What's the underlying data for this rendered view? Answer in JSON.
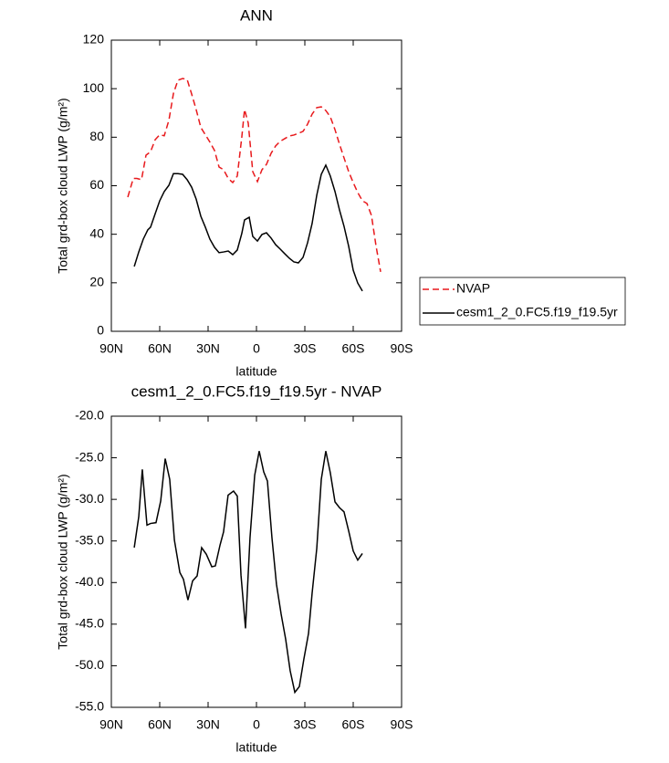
{
  "chart_data": [
    {
      "type": "line",
      "title": "ANN",
      "xlabel": "latitude",
      "ylabel": "Total grd-box cloud LWP (g/m²)",
      "xlim": [
        90,
        -90
      ],
      "ylim": [
        0,
        120
      ],
      "xticks": [
        {
          "value": 90,
          "label": "90N"
        },
        {
          "value": 60,
          "label": "60N"
        },
        {
          "value": 30,
          "label": "30N"
        },
        0,
        {
          "value": -30,
          "label": "30S"
        },
        {
          "value": -60,
          "label": "60S"
        },
        {
          "value": -90,
          "label": "90S"
        }
      ],
      "yticks": [
        0,
        20,
        40,
        60,
        80,
        100,
        120
      ],
      "legend": "right",
      "series": [
        {
          "name": "NVAP",
          "color": "#e8191c",
          "style": "dashed",
          "x": [
            79.8,
            76.4,
            74.2,
            71.3,
            68.5,
            65.7,
            62.8,
            60.0,
            57.2,
            54.3,
            51.5,
            48.7,
            45.8,
            43.0,
            40.2,
            37.4,
            34.5,
            31.7,
            28.9,
            26.0,
            23.2,
            20.4,
            17.5,
            14.7,
            11.9,
            9.1,
            7.4,
            5.1,
            2.3,
            -0.6,
            -3.4,
            -6.2,
            -9.1,
            -11.9,
            -14.7,
            -17.5,
            -20.4,
            -23.2,
            -26.0,
            -28.9,
            -31.7,
            -34.5,
            -37.4,
            -40.2,
            -43.0,
            -45.8,
            -48.7,
            -51.5,
            -54.3,
            -57.2,
            -60.0,
            -62.8,
            -65.7,
            -68.5,
            -71.3,
            -74.2,
            -77.0
          ],
          "values": [
            55.3,
            63,
            63,
            62.5,
            72.6,
            74,
            79,
            81,
            80.6,
            87,
            98,
            103.5,
            104.2,
            103.8,
            97.8,
            91.4,
            84,
            81,
            78,
            74.5,
            67.7,
            66.6,
            63,
            61.3,
            64,
            80,
            91.4,
            85.8,
            65.8,
            61.7,
            66.6,
            68.8,
            73.4,
            76.4,
            78.3,
            79.4,
            80.5,
            80.9,
            81.6,
            82.4,
            85.4,
            89.5,
            92.2,
            92.5,
            91,
            88.4,
            83.1,
            77.1,
            71.5,
            65.8,
            61.3,
            57.2,
            53.8,
            52.7,
            47.8,
            35,
            24.5
          ]
        },
        {
          "name": "cesm1_2_0.FC5.f19_f19.5yr",
          "color": "#000000",
          "style": "solid",
          "x": [
            75.8,
            73.0,
            70.2,
            67.4,
            65.7,
            62.8,
            60.0,
            57.2,
            54.3,
            51.5,
            48.7,
            45.8,
            43.0,
            40.2,
            37.4,
            34.5,
            31.7,
            28.9,
            26.0,
            23.2,
            20.4,
            17.5,
            14.7,
            11.9,
            9.1,
            7.4,
            4.5,
            2.3,
            -0.6,
            -3.4,
            -6.2,
            -9.1,
            -11.9,
            -14.7,
            -17.5,
            -20.4,
            -23.2,
            -26.0,
            -28.9,
            -31.7,
            -34.5,
            -37.4,
            -40.2,
            -43.0,
            -45.8,
            -48.7,
            -51.5,
            -54.3,
            -57.2,
            -60.0,
            -62.8,
            -65.7
          ],
          "values": [
            26.7,
            32.7,
            38,
            41.8,
            42.9,
            48.5,
            53.8,
            57.6,
            60.2,
            65,
            65,
            64.7,
            62.5,
            59.4,
            54.5,
            47.4,
            42.9,
            38,
            34.6,
            32.4,
            32.7,
            33.1,
            31.6,
            33.5,
            40.3,
            45.9,
            47,
            39.1,
            37.2,
            39.9,
            40.6,
            38.4,
            35.7,
            33.9,
            32,
            30.1,
            28.6,
            28.2,
            30.5,
            36.5,
            44.4,
            56.1,
            64.7,
            68.5,
            64,
            57.6,
            50,
            43.3,
            35,
            25.2,
            19.9,
            16.6
          ]
        }
      ]
    },
    {
      "type": "line",
      "title": "cesm1_2_0.FC5.f19_f19.5yr - NVAP",
      "xlabel": "latitude",
      "ylabel": "Total grd-box cloud LWP (g/m²)",
      "xlim": [
        90,
        -90
      ],
      "ylim": [
        -55,
        -20
      ],
      "xticks": [
        {
          "value": 90,
          "label": "90N"
        },
        {
          "value": 60,
          "label": "60N"
        },
        {
          "value": 30,
          "label": "30N"
        },
        0,
        {
          "value": -30,
          "label": "30S"
        },
        {
          "value": -60,
          "label": "60S"
        },
        {
          "value": -90,
          "label": "90S"
        }
      ],
      "yticks": [
        {
          "value": -55,
          "label": "-55.0"
        },
        {
          "value": -50,
          "label": "-50.0"
        },
        {
          "value": -45,
          "label": "-45.0"
        },
        {
          "value": -40,
          "label": "-40.0"
        },
        {
          "value": -35,
          "label": "-35.0"
        },
        {
          "value": -30,
          "label": "-30.0"
        },
        {
          "value": -25,
          "label": "-25.0"
        },
        {
          "value": -20,
          "label": "-20.0"
        }
      ],
      "series": [
        {
          "color": "#000000",
          "style": "solid",
          "x": [
            75.8,
            73.0,
            70.8,
            67.9,
            65.7,
            62.3,
            59.4,
            56.6,
            53.8,
            50.9,
            47.5,
            45.3,
            42.5,
            39.6,
            36.8,
            34.0,
            31.1,
            27.7,
            25.5,
            22.6,
            20.4,
            17.6,
            14.2,
            11.9,
            9.6,
            6.8,
            4.0,
            1.1,
            -1.7,
            -4.5,
            -6.8,
            -9.6,
            -12.4,
            -15.3,
            -18.1,
            -20.9,
            -23.8,
            -26.6,
            -29.4,
            -32.3,
            -34.5,
            -37.4,
            -40.2,
            -43.0,
            -45.8,
            -48.7,
            -51.5,
            -54.3,
            -57.2,
            -60.0,
            -62.8,
            -65.7
          ],
          "values": [
            -35.8,
            -32.1,
            -26.4,
            -33.1,
            -32.9,
            -32.8,
            -30.2,
            -25.1,
            -27.6,
            -34.9,
            -38.8,
            -39.6,
            -42.1,
            -39.8,
            -39.2,
            -35.8,
            -36.6,
            -38.1,
            -38,
            -35.5,
            -33.9,
            -29.5,
            -29,
            -29.6,
            -39.1,
            -45.5,
            -34.6,
            -27.1,
            -24.2,
            -26.7,
            -27.8,
            -34.6,
            -40.2,
            -43.8,
            -46.8,
            -50.6,
            -53.2,
            -52.5,
            -49.2,
            -46.1,
            -41.3,
            -35.9,
            -27.6,
            -24.2,
            -26.8,
            -30.3,
            -31,
            -31.5,
            -33.8,
            -36.2,
            -37.3,
            -36.5
          ]
        }
      ]
    }
  ]
}
